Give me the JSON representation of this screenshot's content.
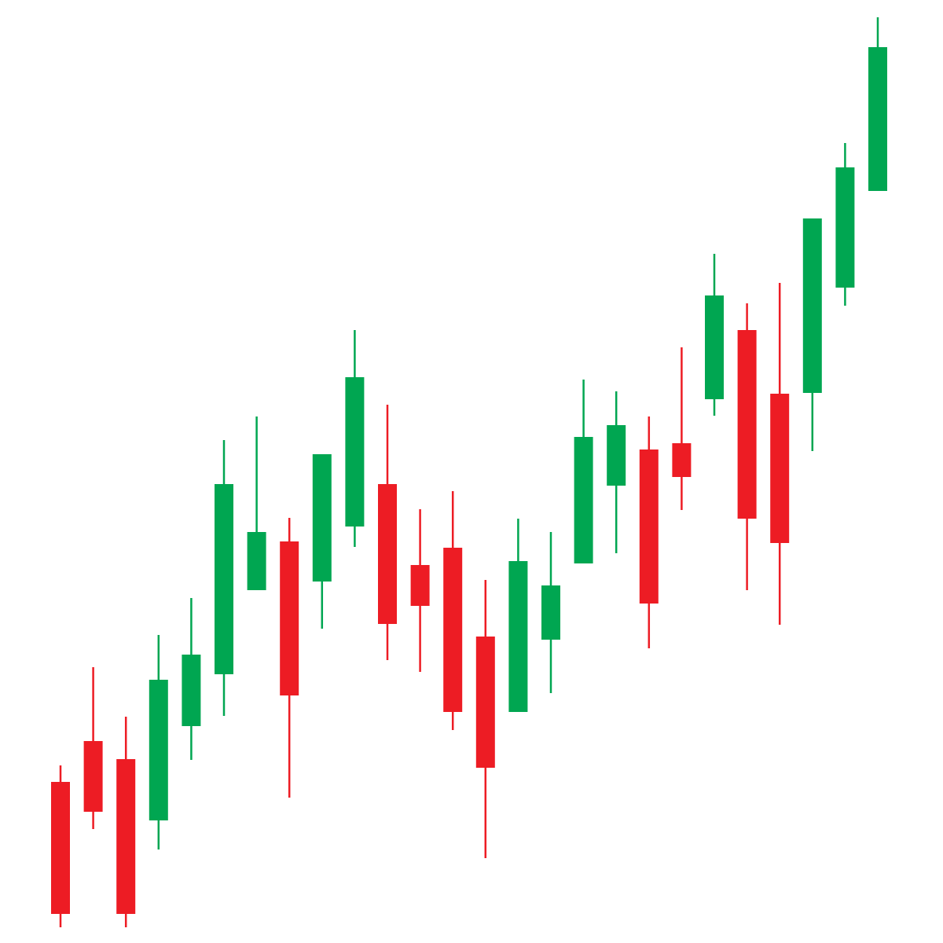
{
  "chart_data": {
    "type": "candlestick",
    "title": "",
    "xlabel": "",
    "ylabel": "",
    "axes_visible": false,
    "grid": false,
    "legend": "none",
    "colors": {
      "up": "#00a651",
      "down": "#ed1c24",
      "background": "#ffffff"
    },
    "ylim": [
      0,
      1200
    ],
    "candles": [
      {
        "open": 205,
        "close": 37,
        "high": 226,
        "low": 20
      },
      {
        "open": 257,
        "close": 167,
        "high": 351,
        "low": 145
      },
      {
        "open": 234,
        "close": 37,
        "high": 288,
        "low": 20
      },
      {
        "open": 156,
        "close": 335,
        "high": 392,
        "low": 119
      },
      {
        "open": 276,
        "close": 367,
        "high": 439,
        "low": 233
      },
      {
        "open": 342,
        "close": 584,
        "high": 640,
        "low": 289
      },
      {
        "open": 449,
        "close": 523,
        "high": 670,
        "low": 449
      },
      {
        "open": 511,
        "close": 315,
        "high": 541,
        "low": 185
      },
      {
        "open": 460,
        "close": 622,
        "high": 622,
        "low": 400
      },
      {
        "open": 530,
        "close": 720,
        "high": 780,
        "low": 504
      },
      {
        "open": 584,
        "close": 406,
        "high": 685,
        "low": 360
      },
      {
        "open": 481,
        "close": 429,
        "high": 552,
        "low": 345
      },
      {
        "open": 503,
        "close": 294,
        "high": 575,
        "low": 271
      },
      {
        "open": 390,
        "close": 223,
        "high": 462,
        "low": 108
      },
      {
        "open": 294,
        "close": 486,
        "high": 540,
        "low": 294
      },
      {
        "open": 386,
        "close": 455,
        "high": 523,
        "low": 318
      },
      {
        "open": 483,
        "close": 644,
        "high": 717,
        "low": 483
      },
      {
        "open": 582,
        "close": 659,
        "high": 702,
        "low": 496
      },
      {
        "open": 628,
        "close": 432,
        "high": 670,
        "low": 375
      },
      {
        "open": 636,
        "close": 593,
        "high": 758,
        "low": 551
      },
      {
        "open": 692,
        "close": 824,
        "high": 877,
        "low": 671
      },
      {
        "open": 780,
        "close": 540,
        "high": 814,
        "low": 449
      },
      {
        "open": 699,
        "close": 509,
        "high": 840,
        "low": 405
      },
      {
        "open": 700,
        "close": 922,
        "high": 922,
        "low": 626
      },
      {
        "open": 834,
        "close": 987,
        "high": 1018,
        "low": 811
      },
      {
        "open": 957,
        "close": 1140,
        "high": 1178,
        "low": 957
      }
    ]
  }
}
